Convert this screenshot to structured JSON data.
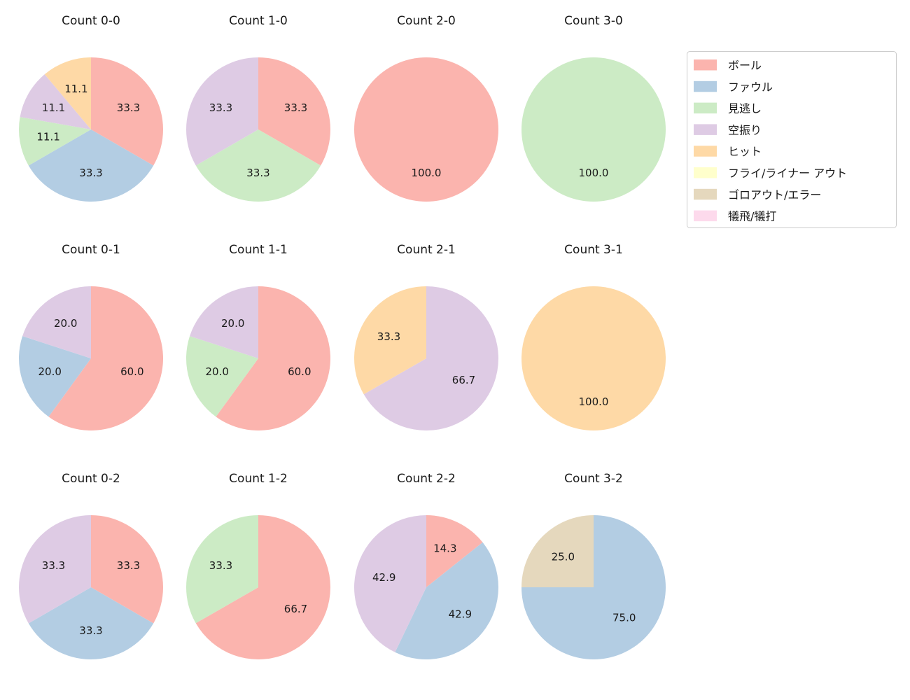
{
  "legend": {
    "items": [
      {
        "label": "ボール",
        "color": "#fbb4ae"
      },
      {
        "label": "ファウル",
        "color": "#b3cde3"
      },
      {
        "label": "見逃し",
        "color": "#ccebc5"
      },
      {
        "label": "空振り",
        "color": "#decbe4"
      },
      {
        "label": "ヒット",
        "color": "#fed9a6"
      },
      {
        "label": "フライ/ライナー アウト",
        "color": "#ffffcc"
      },
      {
        "label": "ゴロアウト/エラー",
        "color": "#e5d8bd"
      },
      {
        "label": "犠飛/犠打",
        "color": "#fddaec"
      }
    ]
  },
  "chart_data": {
    "type": "pie",
    "layout": "3 rows x 4 columns of pies",
    "start_angle_deg": 90,
    "direction": "clockwise",
    "value_format": "percent, one decimal",
    "legend_position": "upper right",
    "categories": [
      "ボール",
      "ファウル",
      "見逃し",
      "空振り",
      "ヒット",
      "フライ/ライナー アウト",
      "ゴロアウト/エラー",
      "犠飛/犠打"
    ],
    "colors": [
      "#fbb4ae",
      "#b3cde3",
      "#ccebc5",
      "#decbe4",
      "#fed9a6",
      "#ffffcc",
      "#e5d8bd",
      "#fddaec"
    ],
    "charts": [
      {
        "title": "Count 0-0",
        "slices": [
          {
            "category": "ボール",
            "value": 33.3
          },
          {
            "category": "ファウル",
            "value": 33.3
          },
          {
            "category": "見逃し",
            "value": 11.1
          },
          {
            "category": "空振り",
            "value": 11.1
          },
          {
            "category": "ヒット",
            "value": 11.1
          }
        ]
      },
      {
        "title": "Count 1-0",
        "slices": [
          {
            "category": "ボール",
            "value": 33.3
          },
          {
            "category": "見逃し",
            "value": 33.3
          },
          {
            "category": "空振り",
            "value": 33.3
          }
        ]
      },
      {
        "title": "Count 2-0",
        "slices": [
          {
            "category": "ボール",
            "value": 100.0
          }
        ]
      },
      {
        "title": "Count 3-0",
        "slices": [
          {
            "category": "見逃し",
            "value": 100.0
          }
        ]
      },
      {
        "title": "Count 0-1",
        "slices": [
          {
            "category": "ボール",
            "value": 60.0
          },
          {
            "category": "ファウル",
            "value": 20.0
          },
          {
            "category": "空振り",
            "value": 20.0
          }
        ]
      },
      {
        "title": "Count 1-1",
        "slices": [
          {
            "category": "ボール",
            "value": 60.0
          },
          {
            "category": "見逃し",
            "value": 20.0
          },
          {
            "category": "空振り",
            "value": 20.0
          }
        ]
      },
      {
        "title": "Count 2-1",
        "slices": [
          {
            "category": "空振り",
            "value": 66.7
          },
          {
            "category": "ヒット",
            "value": 33.3
          }
        ]
      },
      {
        "title": "Count 3-1",
        "slices": [
          {
            "category": "ヒット",
            "value": 100.0
          }
        ]
      },
      {
        "title": "Count 0-2",
        "slices": [
          {
            "category": "ボール",
            "value": 33.3
          },
          {
            "category": "ファウル",
            "value": 33.3
          },
          {
            "category": "空振り",
            "value": 33.3
          }
        ]
      },
      {
        "title": "Count 1-2",
        "slices": [
          {
            "category": "ボール",
            "value": 66.7
          },
          {
            "category": "見逃し",
            "value": 33.3
          }
        ]
      },
      {
        "title": "Count 2-2",
        "slices": [
          {
            "category": "ボール",
            "value": 14.3
          },
          {
            "category": "ファウル",
            "value": 42.9
          },
          {
            "category": "空振り",
            "value": 42.9
          }
        ]
      },
      {
        "title": "Count 3-2",
        "slices": [
          {
            "category": "ファウル",
            "value": 75.0
          },
          {
            "category": "ゴロアウト/エラー",
            "value": 25.0
          }
        ]
      }
    ]
  }
}
